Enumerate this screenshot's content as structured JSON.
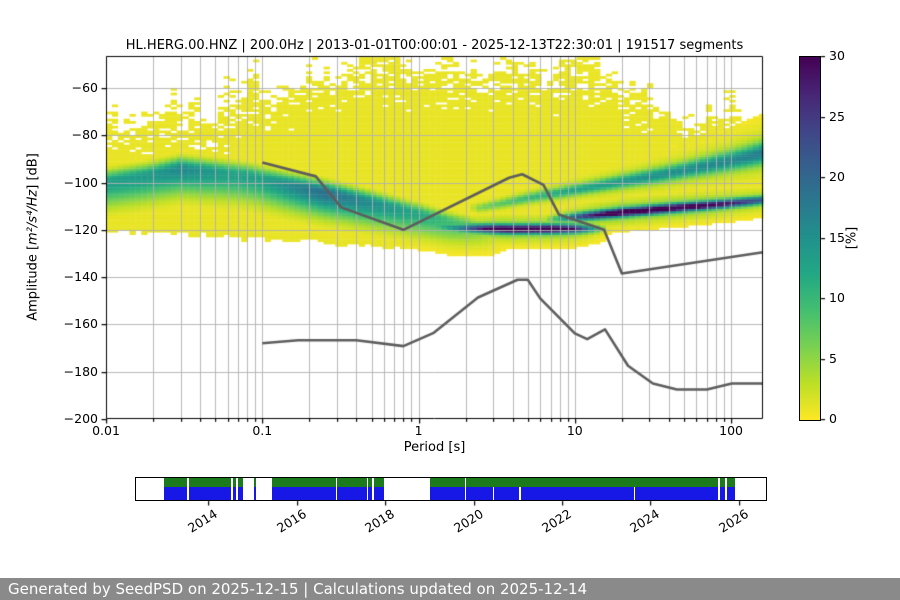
{
  "title": "HL.HERG.00.HNZ | 200.0Hz | 2013-01-01T00:00:01 - 2025-12-13T22:30:01 | 191517 segments",
  "footer": {
    "text": "Generated by SeedPSD on 2025-12-15 | Calculations updated on 2025-12-14",
    "bg": "#8a8a8a",
    "fg": "#ffffff"
  },
  "axes": {
    "xlabel": "Period [s]",
    "ylabel_prefix": "Amplitude [",
    "ylabel_math": "m²/s⁴/Hz",
    "ylabel_suffix": "] [dB]",
    "xticks": [
      {
        "v": 0.01,
        "label": "0.01"
      },
      {
        "v": 0.1,
        "label": "0.1"
      },
      {
        "v": 1,
        "label": "1"
      },
      {
        "v": 10,
        "label": "10"
      },
      {
        "v": 100,
        "label": "100"
      }
    ],
    "yticks": [
      {
        "v": -60,
        "label": "−60"
      },
      {
        "v": -80,
        "label": "−80"
      },
      {
        "v": -100,
        "label": "−100"
      },
      {
        "v": -120,
        "label": "−120"
      },
      {
        "v": -140,
        "label": "−140"
      },
      {
        "v": -160,
        "label": "−160"
      },
      {
        "v": -180,
        "label": "−180"
      },
      {
        "v": -200,
        "label": "−200"
      }
    ],
    "grid_color": "#b0b0b0"
  },
  "colorbar": {
    "label": "[%]",
    "vmin": 0,
    "vmax": 30,
    "cmap": "viridis_r",
    "ticks": [
      {
        "v": 0,
        "label": "0"
      },
      {
        "v": 5,
        "label": "5"
      },
      {
        "v": 10,
        "label": "10"
      },
      {
        "v": 15,
        "label": "15"
      },
      {
        "v": 20,
        "label": "20"
      },
      {
        "v": 25,
        "label": "25"
      },
      {
        "v": 30,
        "label": "30"
      }
    ],
    "viridis_stops": [
      "#440154",
      "#482475",
      "#414487",
      "#355f8d",
      "#2a788e",
      "#21918c",
      "#22a884",
      "#44bf70",
      "#7ad151",
      "#bddf26",
      "#fde725"
    ]
  },
  "chart_data": {
    "type": "heatmap",
    "description": "PPSD probabilistic power spectral density histogram with Peterson noise model reference lines and data-availability timeline",
    "x_axis": {
      "scale": "log",
      "range": [
        0.01,
        160
      ],
      "label": "Period [s]"
    },
    "y_axis": {
      "range": [
        -200,
        -46.5
      ],
      "label": "Amplitude [m²/s⁴/Hz] [dB]"
    },
    "prob_range": [
      0,
      30
    ],
    "ppsd_bands": {
      "main_mode": [
        [
          0.01,
          -99.5
        ],
        [
          0.018,
          -97
        ],
        [
          0.03,
          -94
        ],
        [
          0.05,
          -95.5
        ],
        [
          0.08,
          -97
        ],
        [
          0.12,
          -99.5
        ],
        [
          0.2,
          -102.5
        ],
        [
          0.35,
          -106
        ],
        [
          0.6,
          -109.5
        ],
        [
          1.0,
          -113
        ],
        [
          1.6,
          -116.5
        ],
        [
          2.5,
          -118.8
        ],
        [
          4,
          -119.6
        ]
      ],
      "main_sigma": [
        [
          0.01,
          3
        ],
        [
          0.1,
          3
        ],
        [
          0.5,
          2.7
        ],
        [
          4,
          2.2
        ]
      ],
      "main_peak": [
        [
          0.01,
          13
        ],
        [
          0.02,
          14
        ],
        [
          0.03,
          16
        ],
        [
          0.06,
          13
        ],
        [
          0.1,
          13
        ],
        [
          0.15,
          16
        ],
        [
          0.25,
          19
        ],
        [
          0.45,
          16
        ],
        [
          0.8,
          13
        ],
        [
          1.2,
          11
        ],
        [
          2,
          8
        ],
        [
          3,
          4
        ],
        [
          4,
          0
        ]
      ],
      "dark_flat_mode": [
        [
          1.2,
          -118.3
        ],
        [
          2,
          -119.2
        ],
        [
          4,
          -119.6
        ],
        [
          13,
          -119.4
        ]
      ],
      "dark_flat_peak": [
        [
          1.0,
          0
        ],
        [
          1.2,
          6
        ],
        [
          1.8,
          14
        ],
        [
          2.6,
          24
        ],
        [
          3.5,
          30
        ],
        [
          7,
          30
        ],
        [
          10,
          24
        ],
        [
          14,
          8
        ],
        [
          17,
          0
        ]
      ],
      "dark_rise_mode": [
        [
          6,
          -116
        ],
        [
          10,
          -114.5
        ],
        [
          20,
          -112.5
        ],
        [
          40,
          -110.8
        ],
        [
          80,
          -109.2
        ],
        [
          160,
          -107.3
        ]
      ],
      "dark_rise_peak": [
        [
          6,
          0
        ],
        [
          8,
          10
        ],
        [
          12,
          22
        ],
        [
          20,
          30
        ],
        [
          60,
          28
        ],
        [
          100,
          23
        ],
        [
          160,
          18
        ]
      ],
      "dark_sigma": 1.15,
      "green_mode": [
        [
          2.5,
          -110.5
        ],
        [
          5,
          -106.5
        ],
        [
          10,
          -103
        ],
        [
          20,
          -99.5
        ],
        [
          40,
          -96
        ],
        [
          80,
          -92
        ],
        [
          120,
          -89.5
        ],
        [
          160,
          -87.5
        ]
      ],
      "green_sigma": [
        [
          2.5,
          1.2
        ],
        [
          10,
          1.6
        ],
        [
          50,
          2.2
        ],
        [
          160,
          3
        ]
      ],
      "green_peak": [
        [
          2.0,
          0
        ],
        [
          2.5,
          5
        ],
        [
          5,
          8
        ],
        [
          10,
          10
        ],
        [
          30,
          12
        ],
        [
          100,
          13
        ],
        [
          160,
          14
        ]
      ],
      "cloud_top": [
        [
          0.01,
          -80
        ],
        [
          0.02,
          -76
        ],
        [
          0.04,
          -78
        ],
        [
          0.07,
          -70
        ],
        [
          0.1,
          -67
        ],
        [
          0.15,
          -62
        ],
        [
          0.25,
          -57
        ],
        [
          0.4,
          -54
        ],
        [
          0.7,
          -53
        ],
        [
          1.0,
          -56
        ],
        [
          1.5,
          -53
        ],
        [
          2.5,
          -56
        ],
        [
          4,
          -52
        ],
        [
          6,
          -58
        ],
        [
          9,
          -56
        ],
        [
          14,
          -57
        ],
        [
          20,
          -61
        ],
        [
          30,
          -66
        ],
        [
          45,
          -76
        ],
        [
          70,
          -80
        ],
        [
          100,
          -78
        ],
        [
          130,
          -84
        ],
        [
          160,
          -88
        ]
      ],
      "cloud_bottom": [
        [
          0.01,
          -120.5
        ],
        [
          0.03,
          -121.5
        ],
        [
          0.06,
          -123
        ],
        [
          0.15,
          -124.5
        ],
        [
          0.4,
          -126.5
        ],
        [
          0.8,
          -127.5
        ],
        [
          1.5,
          -125.5
        ],
        [
          3,
          -123.5
        ],
        [
          6,
          -122.5
        ],
        [
          12,
          -121.5
        ],
        [
          25,
          -119
        ],
        [
          50,
          -116
        ],
        [
          100,
          -112
        ],
        [
          160,
          -110
        ]
      ],
      "cloud_base_prob": 1.0
    },
    "noise_models": [
      {
        "name": "NHNM",
        "points": [
          [
            0.1,
            -91.5
          ],
          [
            0.22,
            -97.4
          ],
          [
            0.32,
            -110.5
          ],
          [
            0.8,
            -120
          ],
          [
            3.8,
            -98
          ],
          [
            4.6,
            -96.5
          ],
          [
            6.3,
            -101
          ],
          [
            7.9,
            -113.5
          ],
          [
            15.4,
            -120
          ],
          [
            20,
            -138.5
          ],
          [
            160,
            -129.5
          ]
        ]
      },
      {
        "name": "NLNM",
        "points": [
          [
            0.1,
            -168
          ],
          [
            0.17,
            -166.7
          ],
          [
            0.4,
            -166.7
          ],
          [
            0.8,
            -169.2
          ],
          [
            1.24,
            -163.7
          ],
          [
            2.4,
            -148.6
          ],
          [
            4.3,
            -141.1
          ],
          [
            5,
            -141.1
          ],
          [
            6,
            -149
          ],
          [
            10,
            -163.8
          ],
          [
            12,
            -166.2
          ],
          [
            15.6,
            -162.1
          ],
          [
            21.9,
            -177.5
          ],
          [
            31.6,
            -185
          ],
          [
            45,
            -187.5
          ],
          [
            70,
            -187.5
          ],
          [
            101,
            -185
          ],
          [
            154,
            -185
          ],
          [
            160,
            -185.1
          ]
        ]
      }
    ],
    "line_color": "#5d5d5d",
    "timeline": {
      "range": [
        2012.36,
        2026.62
      ],
      "year_ticks": [
        2014,
        2016,
        2018,
        2020,
        2022,
        2024,
        2026
      ],
      "green_color": "#1b7a1b",
      "blue_color": "#1818e6",
      "green_segments": [
        [
          2013.0,
          2013.52
        ],
        [
          2013.56,
          2014.52
        ],
        [
          2014.56,
          2014.62
        ],
        [
          2014.66,
          2014.78
        ],
        [
          2015.03,
          2015.07
        ],
        [
          2015.44,
          2016.88
        ],
        [
          2016.92,
          2017.58
        ],
        [
          2017.62,
          2017.71
        ],
        [
          2017.75,
          2017.97
        ],
        [
          2019.01,
          2019.8
        ],
        [
          2019.84,
          2025.54
        ],
        [
          2025.59,
          2025.69
        ],
        [
          2025.73,
          2025.91
        ]
      ],
      "blue_segments": [
        [
          2013.0,
          2013.52
        ],
        [
          2013.56,
          2014.52
        ],
        [
          2014.56,
          2014.62
        ],
        [
          2014.66,
          2014.78
        ],
        [
          2015.03,
          2015.07
        ],
        [
          2015.44,
          2016.88
        ],
        [
          2016.92,
          2017.58
        ],
        [
          2017.62,
          2017.71
        ],
        [
          2017.75,
          2017.97
        ],
        [
          2019.01,
          2019.8
        ],
        [
          2019.84,
          2020.44
        ],
        [
          2020.47,
          2021.04
        ],
        [
          2021.07,
          2023.63
        ],
        [
          2023.66,
          2025.54
        ],
        [
          2025.59,
          2025.69
        ],
        [
          2025.73,
          2025.91
        ]
      ]
    }
  }
}
